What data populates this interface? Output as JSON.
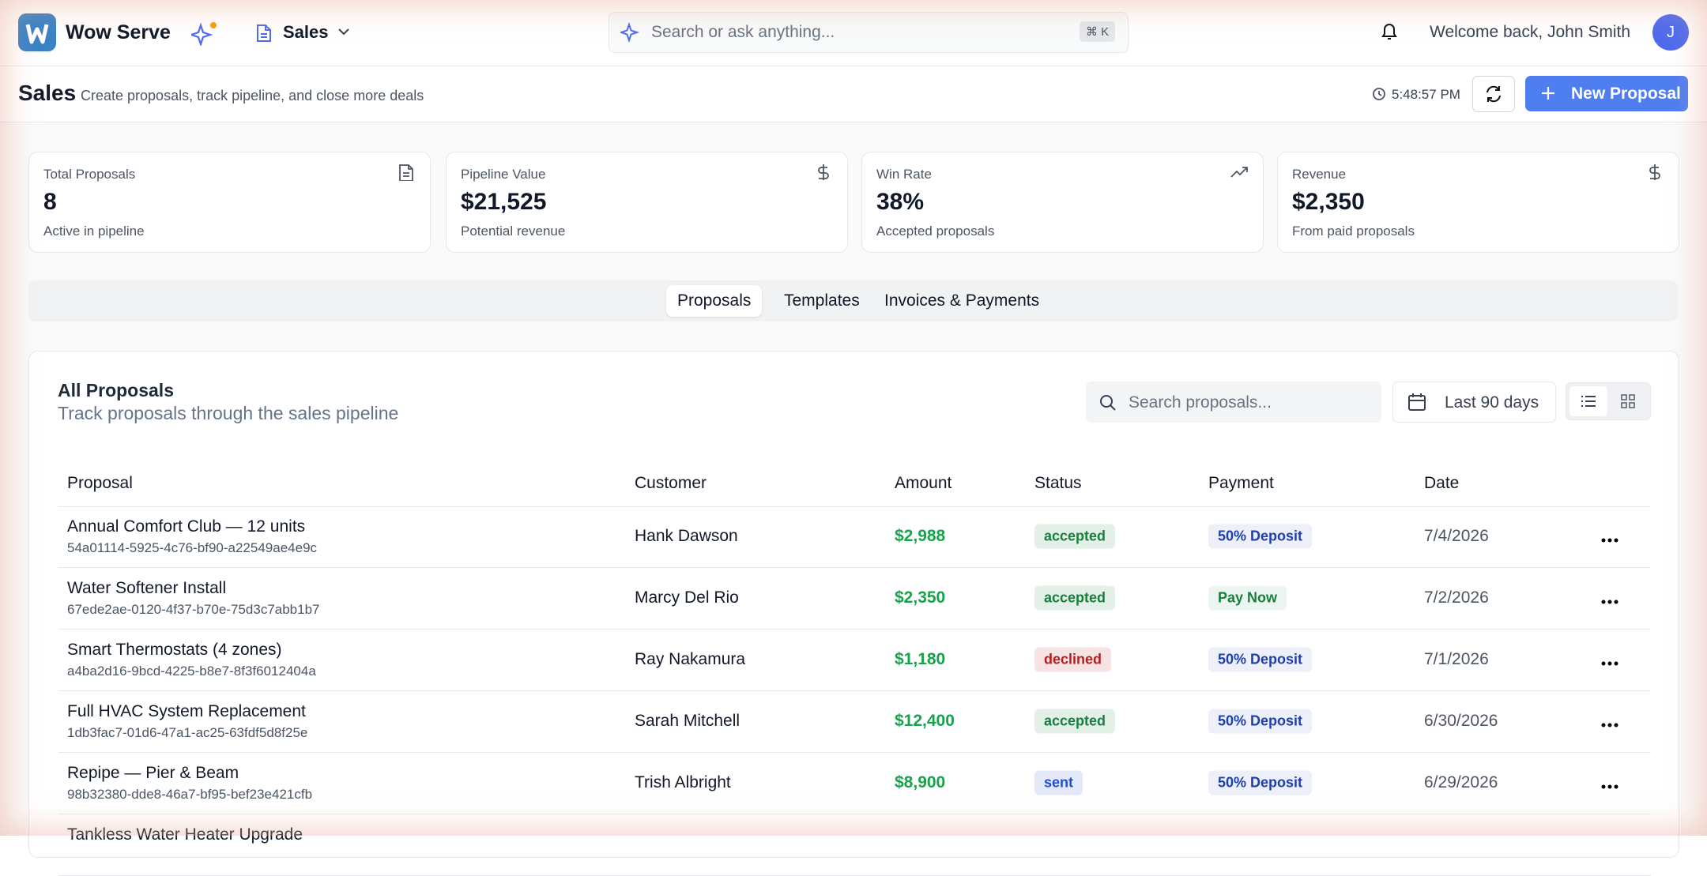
{
  "header": {
    "brand": "Wow Serve",
    "module": "Sales",
    "search_placeholder": "Search or ask anything...",
    "shortcut": "⌘ K",
    "welcome": "Welcome back, John Smith",
    "avatar": "J"
  },
  "page": {
    "title": "Sales",
    "subtitle": "Create proposals, track pipeline, and close more deals",
    "time": "5:48:57 PM",
    "new_button": "New Proposal"
  },
  "stats": [
    {
      "label": "Total Proposals",
      "value": "8",
      "note": "Active in pipeline"
    },
    {
      "label": "Pipeline Value",
      "value": "$21,525",
      "note": "Potential revenue"
    },
    {
      "label": "Win Rate",
      "value": "38%",
      "note": "Accepted proposals"
    },
    {
      "label": "Revenue",
      "value": "$2,350",
      "note": "From paid proposals"
    }
  ],
  "tabs": {
    "items": [
      "Proposals",
      "Templates",
      "Invoices & Payments"
    ],
    "active": 0
  },
  "list": {
    "title": "All Proposals",
    "subtitle": "Track proposals through the sales pipeline",
    "search_placeholder": "Search proposals...",
    "range": "Last 90 days"
  },
  "table": {
    "columns": [
      "Proposal",
      "Customer",
      "Amount",
      "Status",
      "Payment",
      "Date"
    ],
    "rows": [
      {
        "title": "Annual Comfort Club — 12 units",
        "id": "54a01114-5925-4c76-bf90-a22549ae4e9c",
        "customer": "Hank Dawson",
        "amount": "$2,988",
        "status": "accepted",
        "status_color": "#15803d",
        "payment": "50% Deposit",
        "payment_color": "#1e40af",
        "date": "7/4/2026"
      },
      {
        "title": "Water Softener Install",
        "id": "67ede2ae-0120-4f37-b70e-75d3c7abb1b7",
        "customer": "Marcy Del Rio",
        "amount": "$2,350",
        "status": "accepted",
        "status_color": "#15803d",
        "payment": "Pay Now",
        "payment_color": "#15803d",
        "date": "7/2/2026"
      },
      {
        "title": "Smart Thermostats (4 zones)",
        "id": "a4ba2d16-9bcd-4225-b8e7-8f3f6012404a",
        "customer": "Ray Nakamura",
        "amount": "$1,180",
        "status": "declined",
        "status_color": "#b91c1c",
        "payment": "50% Deposit",
        "payment_color": "#1e40af",
        "date": "7/1/2026"
      },
      {
        "title": "Full HVAC System Replacement",
        "id": "1db3fac7-01d6-47a1-ac25-63fdf5d8f25e",
        "customer": "Sarah Mitchell",
        "amount": "$12,400",
        "status": "accepted",
        "status_color": "#15803d",
        "payment": "50% Deposit",
        "payment_color": "#1e40af",
        "date": "6/30/2026"
      },
      {
        "title": "Repipe — Pier & Beam",
        "id": "98b32380-dde8-46a7-bf95-bef23e421cfb",
        "customer": "Trish Albright",
        "amount": "$8,900",
        "status": "sent",
        "status_color": "#1d4ed8",
        "payment": "50% Deposit",
        "payment_color": "#1e40af",
        "date": "6/29/2026"
      },
      {
        "title": "Tankless Water Heater Upgrade"
      }
    ]
  }
}
